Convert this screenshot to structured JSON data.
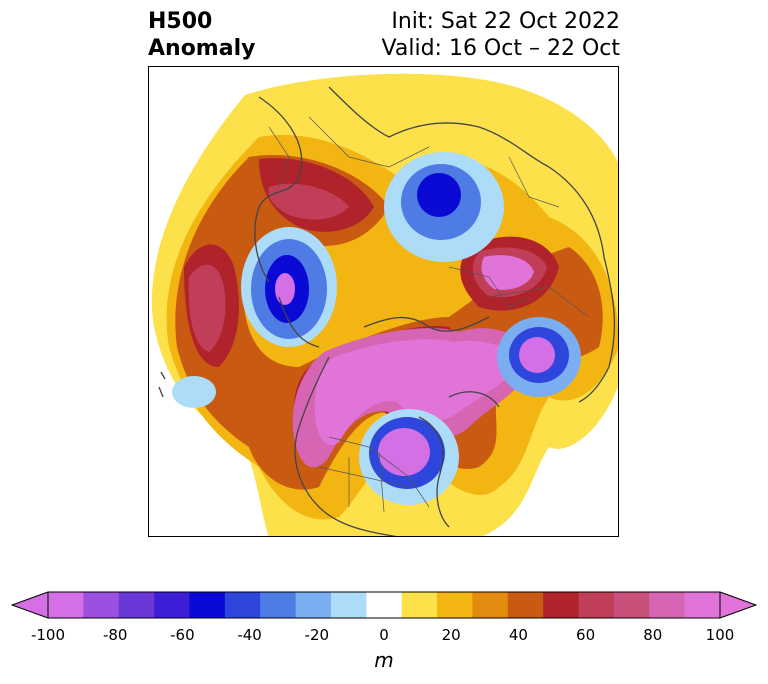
{
  "title": {
    "left_line1": "H500",
    "left_line2": "Anomaly",
    "right_line1": "Init: Sat 22 Oct 2022",
    "right_line2": "Valid: 16 Oct – 22 Oct"
  },
  "map": {
    "projection": "north-polar-stereographic",
    "field": "500 hPa geopotential height anomaly"
  },
  "colorbar": {
    "unit": "m",
    "extend": "both",
    "levels": [
      -100,
      -90,
      -80,
      -70,
      -60,
      -50,
      -40,
      -30,
      -20,
      -10,
      10,
      20,
      30,
      40,
      50,
      60,
      70,
      80,
      90,
      100
    ],
    "colors": [
      "#d46fe6",
      "#9b50e0",
      "#6a38d8",
      "#3d1ed6",
      "#0a0ad4",
      "#2e46db",
      "#4f7be4",
      "#7aaef0",
      "#acdcf8",
      "#ffffff",
      "#fde14a",
      "#f2b511",
      "#e38b0e",
      "#c95a12",
      "#b0232a",
      "#c03e58",
      "#c9507a",
      "#d665b3",
      "#e074d8"
    ],
    "tick_labels": [
      "-100",
      "-80",
      "-60",
      "-40",
      "-20",
      "0",
      "20",
      "40",
      "60",
      "80",
      "100"
    ]
  }
}
